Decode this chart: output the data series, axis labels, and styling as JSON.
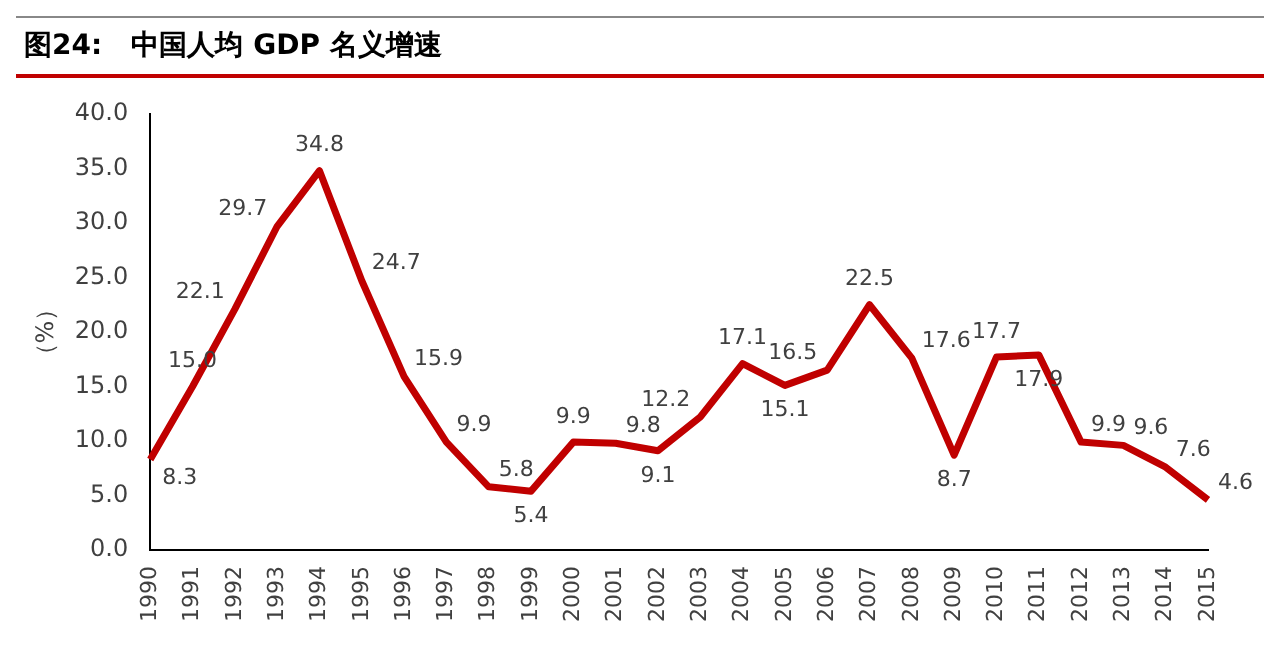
{
  "chart_data": {
    "type": "line",
    "title": "图24:   中国人均 GDP 名义增速",
    "ylabel": "（%）",
    "categories": [
      "1990",
      "1991",
      "1992",
      "1993",
      "1994",
      "1995",
      "1996",
      "1997",
      "1998",
      "1999",
      "2000",
      "2001",
      "2002",
      "2003",
      "2004",
      "2005",
      "2006",
      "2007",
      "2008",
      "2009",
      "2010",
      "2011",
      "2012",
      "2013",
      "2014",
      "2015"
    ],
    "series": [
      {
        "color": "#c00000",
        "values": [
          8.3,
          15.0,
          22.1,
          29.7,
          34.8,
          24.7,
          15.9,
          9.9,
          5.8,
          5.4,
          9.9,
          9.8,
          9.1,
          12.2,
          17.1,
          15.1,
          16.5,
          22.5,
          17.6,
          8.7,
          17.7,
          17.9,
          9.9,
          9.6,
          7.6,
          4.6
        ],
        "value_labels": [
          "8.3",
          "15.0",
          "22.1",
          "29.7",
          "34.8",
          "24.7",
          "15.9",
          "9.9",
          "5.8",
          "5.4",
          "9.9",
          "9.8",
          "9.1",
          "12.2",
          "17.1",
          "15.1",
          "16.5",
          "22.5",
          "17.6",
          "8.7",
          "17.7",
          "17.9",
          "9.9",
          "9.6",
          "7.6",
          "4.6"
        ]
      }
    ],
    "ylim": [
      0,
      40
    ],
    "yticks": [
      {
        "value": 0,
        "label": "0.0"
      },
      {
        "value": 5,
        "label": "5.0"
      },
      {
        "value": 10,
        "label": "10.0"
      },
      {
        "value": 15,
        "label": "15.0"
      },
      {
        "value": 20,
        "label": "20.0"
      },
      {
        "value": 25,
        "label": "25.0"
      },
      {
        "value": 30,
        "label": "30.0"
      },
      {
        "value": 35,
        "label": "35.0"
      },
      {
        "value": 40,
        "label": "40.0"
      }
    ],
    "grid": false,
    "legend": false,
    "marker": "none",
    "line_style": "solid"
  }
}
